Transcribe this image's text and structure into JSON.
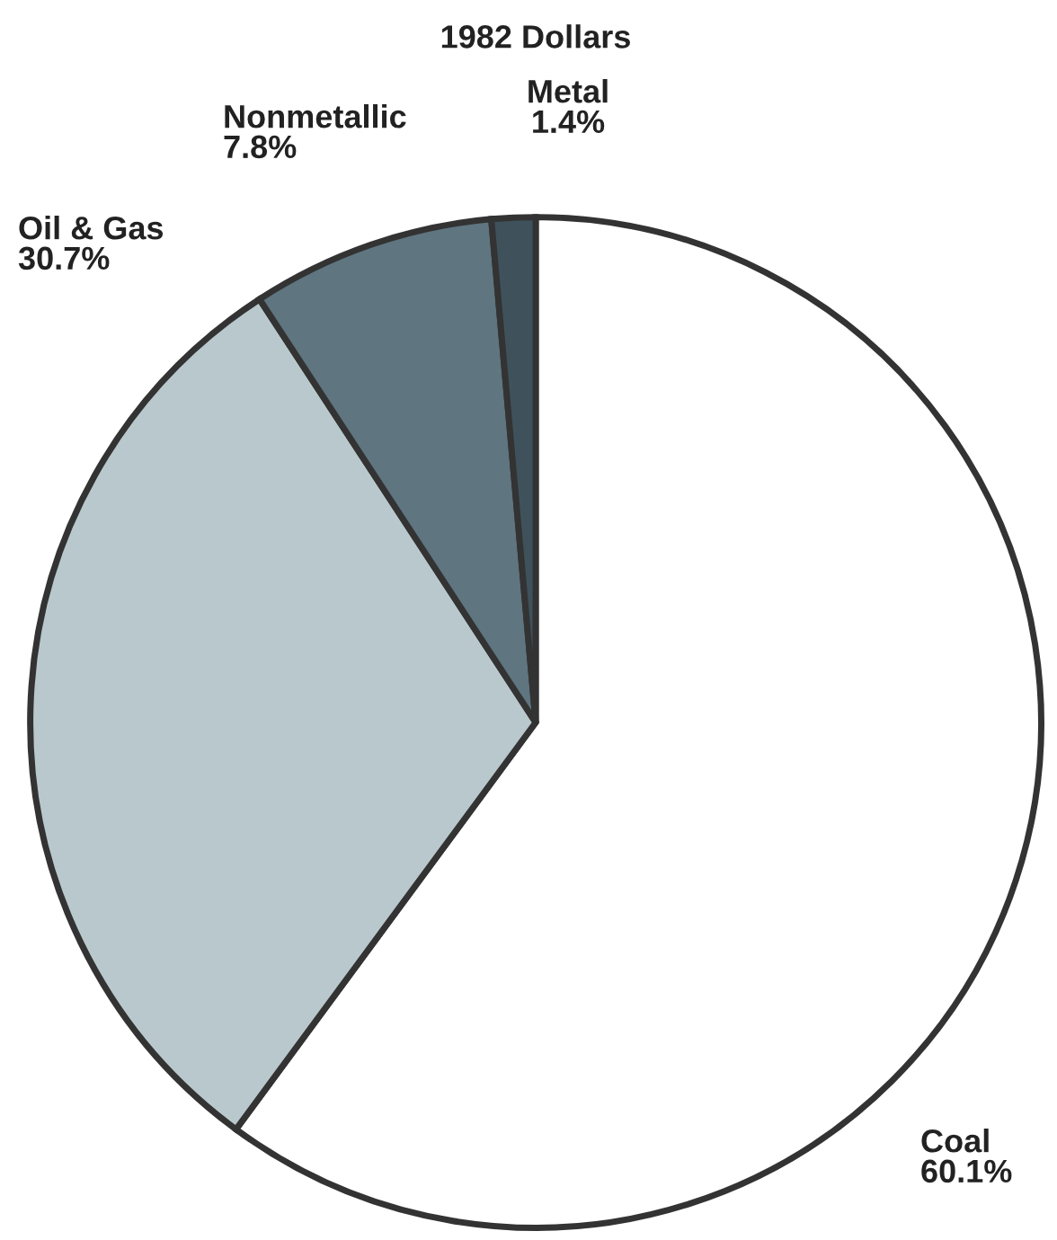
{
  "chart_data": {
    "type": "pie",
    "title": "1982 Dollars",
    "categories": [
      "Coal",
      "Oil & Gas",
      "Nonmetallic",
      "Metal"
    ],
    "values": [
      60.1,
      30.7,
      7.8,
      1.4
    ],
    "value_labels": [
      "60.1%",
      "30.7%",
      "7.8%",
      "1.4%"
    ],
    "colors": [
      "#ffffff",
      "#b9c8cc",
      "#5f7580",
      "#3f525c"
    ]
  }
}
